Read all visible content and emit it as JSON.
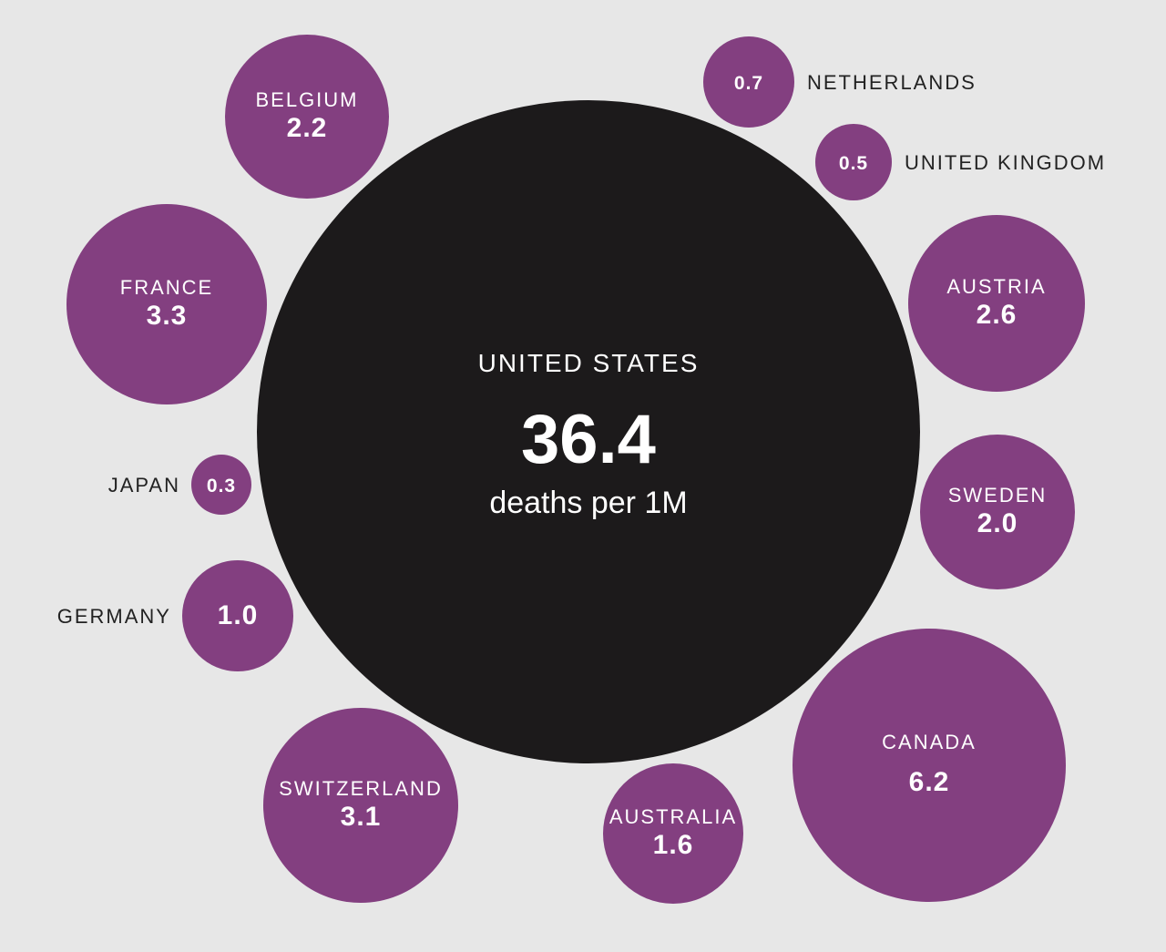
{
  "chart_data": {
    "type": "bubble",
    "unit": "deaths per 1M",
    "focus": {
      "name": "UNITED STATES",
      "value": "36.4",
      "unit_label": "deaths per 1M"
    },
    "bubbles": [
      {
        "name": "BELGIUM",
        "value": "2.2",
        "label_position": "inside"
      },
      {
        "name": "NETHERLANDS",
        "value": "0.7",
        "label_position": "right"
      },
      {
        "name": "UNITED KINGDOM",
        "value": "0.5",
        "label_position": "right"
      },
      {
        "name": "FRANCE",
        "value": "3.3",
        "label_position": "inside"
      },
      {
        "name": "AUSTRIA",
        "value": "2.6",
        "label_position": "inside"
      },
      {
        "name": "JAPAN",
        "value": "0.3",
        "label_position": "left"
      },
      {
        "name": "SWEDEN",
        "value": "2.0",
        "label_position": "inside"
      },
      {
        "name": "GERMANY",
        "value": "1.0",
        "label_position": "left"
      },
      {
        "name": "SWITZERLAND",
        "value": "3.1",
        "label_position": "inside"
      },
      {
        "name": "AUSTRALIA",
        "value": "1.6",
        "label_position": "inside"
      },
      {
        "name": "CANADA",
        "value": "6.2",
        "label_position": "inside"
      }
    ],
    "colors": {
      "background": "#e7e7e7",
      "focus_fill": "#1c1a1b",
      "bubble_fill": "#833f80",
      "text_light": "#ffffff",
      "text_dark": "#222222"
    }
  }
}
